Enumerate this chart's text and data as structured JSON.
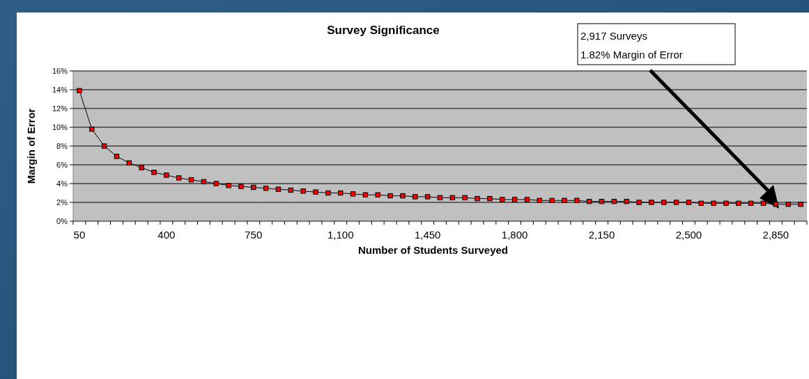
{
  "chart_data": {
    "type": "line",
    "title": "Survey Significance",
    "xlabel": "Number of Students Surveyed",
    "ylabel": "Margin of Error",
    "annotations": [
      "2,917 Surveys\n1.82% Margin of Error"
    ],
    "categories": [
      "50",
      null,
      null,
      null,
      null,
      null,
      null,
      "400",
      null,
      null,
      null,
      null,
      null,
      null,
      "750",
      null,
      null,
      null,
      null,
      null,
      null,
      "1,100",
      null,
      null,
      null,
      null,
      null,
      null,
      "1,450",
      null,
      null,
      null,
      null,
      null,
      null,
      "1,800",
      null,
      null,
      null,
      null,
      null,
      null,
      "2,150",
      null,
      null,
      null,
      null,
      null,
      null,
      "2,500",
      null,
      null,
      null,
      null,
      null,
      null,
      "2,850",
      null,
      null
    ],
    "series": [
      {
        "color": "#ff0000",
        "values": [
          13.9,
          9.8,
          8.0,
          6.9,
          6.2,
          5.7,
          5.2,
          4.9,
          4.6,
          4.4,
          4.2,
          4.0,
          3.8,
          3.7,
          3.6,
          3.5,
          3.4,
          3.3,
          3.2,
          3.1,
          3.0,
          3.0,
          2.9,
          2.8,
          2.8,
          2.7,
          2.7,
          2.6,
          2.6,
          2.5,
          2.5,
          2.5,
          2.4,
          2.4,
          2.3,
          2.3,
          2.3,
          2.2,
          2.2,
          2.2,
          2.2,
          2.1,
          2.1,
          2.1,
          2.1,
          2.0,
          2.0,
          2.0,
          2.0,
          2.0,
          1.9,
          1.9,
          1.9,
          1.9,
          1.9,
          1.9,
          1.8,
          1.8,
          1.8
        ]
      }
    ],
    "ylim": [
      0,
      16
    ],
    "yticks": [
      {
        "value": 0,
        "label": "0%"
      },
      {
        "value": 2,
        "label": "2%"
      },
      {
        "value": 4,
        "label": "4%"
      },
      {
        "value": 6,
        "label": "6%"
      },
      {
        "value": 8,
        "label": "8%"
      },
      {
        "value": 10,
        "label": "10%"
      },
      {
        "value": 12,
        "label": "12%"
      },
      {
        "value": 14,
        "label": "14%"
      },
      {
        "value": 16,
        "label": "16%"
      }
    ],
    "grid": "y",
    "marker": "square",
    "line_style": "solid"
  }
}
